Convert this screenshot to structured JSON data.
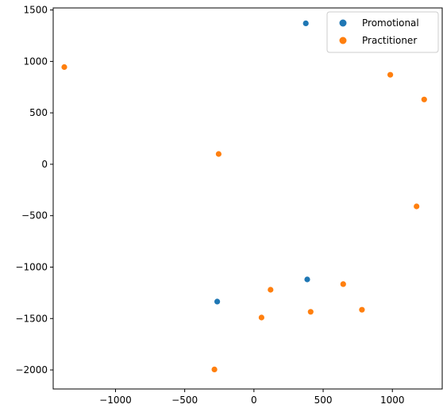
{
  "chart_data": {
    "type": "scatter",
    "title": "",
    "xlabel": "",
    "ylabel": "",
    "xlim": [
      -1450,
      1360
    ],
    "ylim": [
      -2185,
      1520
    ],
    "x_ticks": [
      -1000,
      -500,
      0,
      500,
      1000
    ],
    "x_tick_labels": [
      "−1000",
      "−500",
      "0",
      "500",
      "1000"
    ],
    "y_ticks": [
      1500,
      1000,
      500,
      0,
      -500,
      -1000,
      -1500,
      -2000
    ],
    "y_tick_labels": [
      "1500",
      "1000",
      "500",
      "0",
      "−500",
      "−1000",
      "−1500",
      "−2000"
    ],
    "grid": false,
    "legend_position": "top-right",
    "series": [
      {
        "name": "Promotional",
        "color": "#1f77b4",
        "points": [
          {
            "x": 375,
            "y": 1370
          },
          {
            "x": 385,
            "y": -1120
          },
          {
            "x": -265,
            "y": -1335
          }
        ]
      },
      {
        "name": "Practitioner",
        "color": "#ff7f0e",
        "points": [
          {
            "x": -1370,
            "y": 945
          },
          {
            "x": 985,
            "y": 870
          },
          {
            "x": 1230,
            "y": 630
          },
          {
            "x": -255,
            "y": 100
          },
          {
            "x": 1175,
            "y": -410
          },
          {
            "x": 645,
            "y": -1165
          },
          {
            "x": 120,
            "y": -1220
          },
          {
            "x": 780,
            "y": -1415
          },
          {
            "x": 410,
            "y": -1435
          },
          {
            "x": 55,
            "y": -1490
          },
          {
            "x": -285,
            "y": -1995
          }
        ]
      }
    ]
  }
}
